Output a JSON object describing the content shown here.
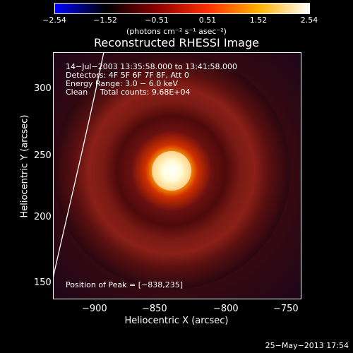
{
  "colorbar": {
    "ticks": [
      "−2.54",
      "−1.52",
      "−0.51",
      "0.51",
      "1.52",
      "2.54"
    ],
    "units": "(photons cm⁻² s⁻¹ asec⁻²)",
    "colors": [
      "#0000ff",
      "#000000",
      "#8b0000",
      "#ff3000",
      "#ffb000",
      "#ffffff"
    ]
  },
  "image": {
    "title": "Reconstructed RHESSI Image",
    "info": [
      "14−Jul−2003 13:35:58.000 to 13:41:58.000",
      "Detectors: 4F 5F 6F 7F 8F, Att 0",
      "Energy Range: 3.0 − 6.0 keV",
      "Clean     Total counts: 9.68E+04"
    ],
    "peak_label": "Position of Peak = [−838,235]",
    "xlabel": "Heliocentric X (arcsec)",
    "ylabel": "Heliocentric Y (arcsec)",
    "xticks": [
      "−900",
      "−850",
      "−800",
      "−750"
    ],
    "yticks": [
      "300",
      "250",
      "200",
      "150"
    ],
    "xrange": [
      -938,
      -734
    ],
    "yrange": [
      145,
      331
    ],
    "peak": {
      "x": -838,
      "y": 235
    }
  },
  "timestamp": "25−May−2013 17:54"
}
